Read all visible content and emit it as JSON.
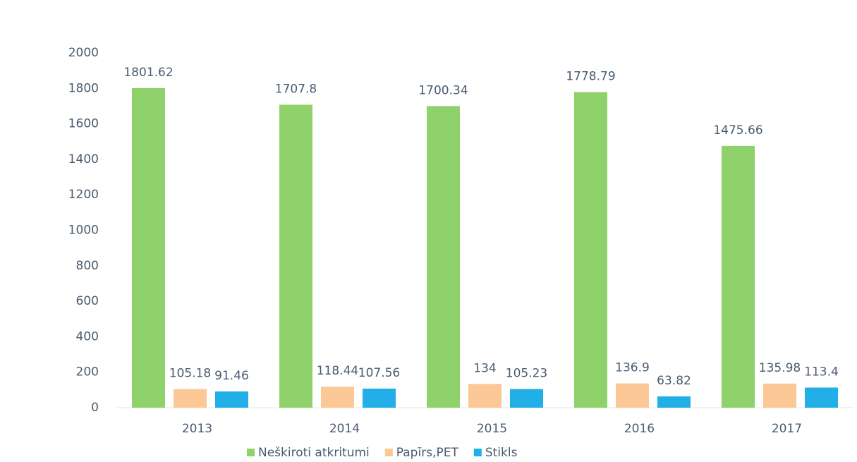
{
  "chart_data": {
    "type": "bar",
    "categories": [
      "2013",
      "2014",
      "2015",
      "2016",
      "2017"
    ],
    "series": [
      {
        "name": "Neškiroti atkritumi",
        "color": "#8fd16a",
        "values": [
          1801.62,
          1707.8,
          1700.34,
          1778.79,
          1475.66
        ]
      },
      {
        "name": "Papīrs,PET",
        "color": "#fcc896",
        "values": [
          105.18,
          118.44,
          134,
          136.9,
          135.98
        ]
      },
      {
        "name": "Stikls",
        "color": "#22aee6",
        "values": [
          91.46,
          107.56,
          105.23,
          63.82,
          113.4
        ]
      }
    ],
    "ylim": [
      0,
      2000
    ],
    "yticks": [
      0,
      200,
      400,
      600,
      800,
      1000,
      1200,
      1400,
      1600,
      1800,
      2000
    ],
    "grid": false,
    "legend": "bottom"
  }
}
